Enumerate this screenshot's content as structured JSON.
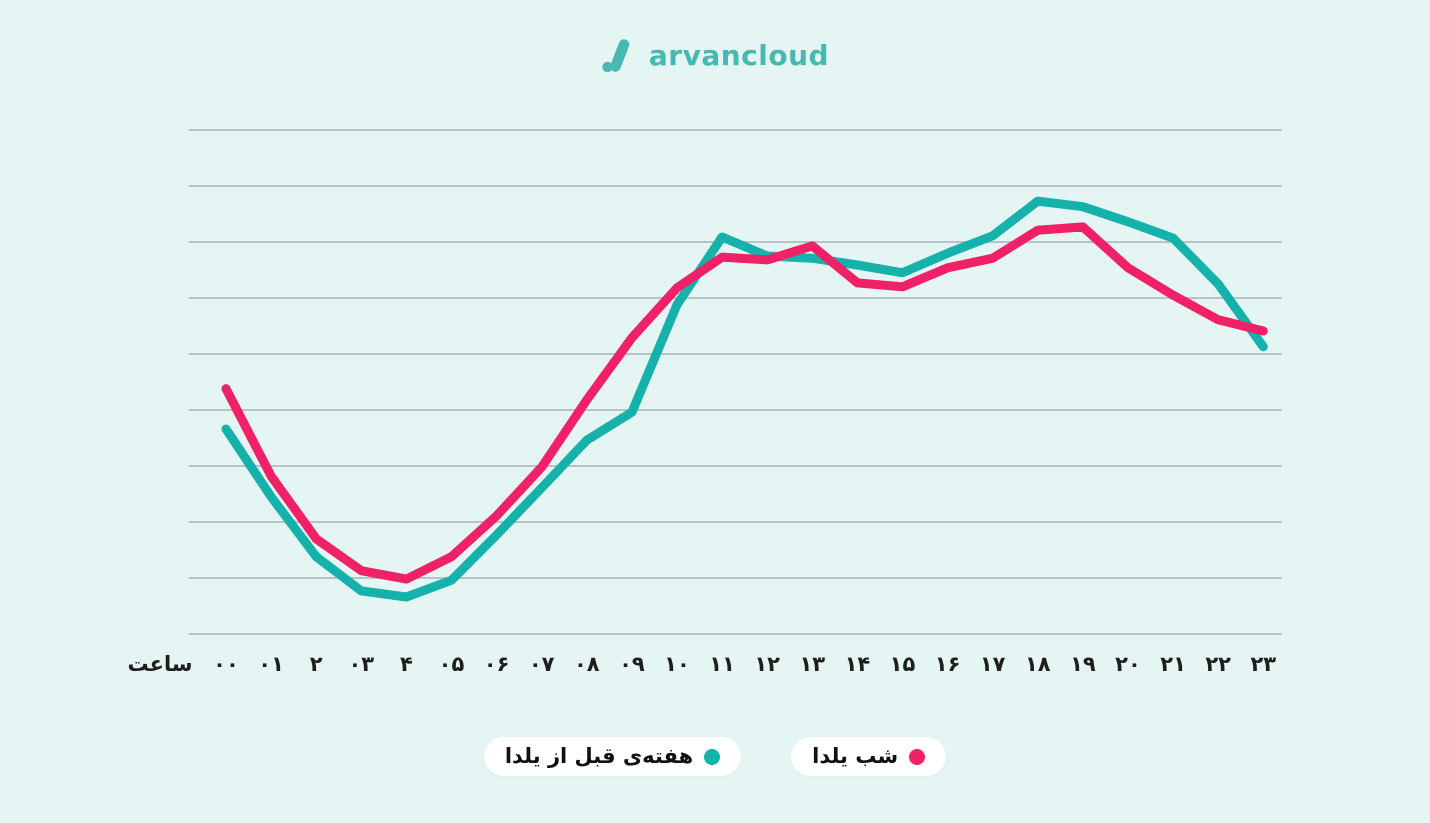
{
  "logo": {
    "text": "arvancloud",
    "color": "#47b9b1"
  },
  "axis": {
    "x_title": "ساعت"
  },
  "legend": [
    {
      "label": "هفته‌ی قبل از یلدا",
      "color": "#15b2ab"
    },
    {
      "label": "شب یلدا",
      "color": "#f02166"
    }
  ],
  "colors": {
    "background": "#e5f5f3",
    "gridline": "#b9c2c4",
    "pink_series": "#f02166",
    "teal_series": "#15b2ab",
    "label_text": "#1e1e1e"
  },
  "chart_data": {
    "type": "line",
    "title": "",
    "xlabel": "ساعت",
    "ylabel": "",
    "ylim": [
      0,
      100
    ],
    "grid": "horizontal",
    "gridline_count": 10,
    "legend_position": "bottom",
    "categories": [
      "۰۰",
      "۰۱",
      "۲",
      "۰۳",
      "۴",
      "۰۵",
      "۰۶",
      "۰۷",
      "۰۸",
      "۰۹",
      "۱۰",
      "۱۱",
      "۱۲",
      "۱۳",
      "۱۴",
      "۱۵",
      "۱۶",
      "۱۷",
      "۱۸",
      "۱۹",
      "۲۰",
      "۲۱",
      "۲۲",
      "۲۳"
    ],
    "series": [
      {
        "name": "هفته‌ی قبل از یلدا",
        "color": "#15b2ab",
        "values": [
          36.6,
          24.5,
          13.8,
          7.7,
          6.6,
          9.6,
          17.7,
          26.1,
          34.6,
          39.6,
          58.8,
          70.9,
          67.5,
          67.1,
          65.9,
          64.5,
          68.0,
          71.1,
          77.3,
          76.3,
          73.6,
          70.7,
          62.5,
          51.3
        ]
      },
      {
        "name": "شب یلدا",
        "color": "#f02166",
        "values": [
          43.8,
          28.2,
          17.0,
          11.3,
          9.8,
          13.8,
          21.1,
          29.8,
          41.8,
          52.9,
          61.8,
          67.3,
          66.8,
          69.3,
          62.7,
          62.0,
          65.4,
          67.1,
          72.1,
          72.7,
          65.4,
          60.5,
          56.1,
          54.1
        ]
      }
    ]
  }
}
